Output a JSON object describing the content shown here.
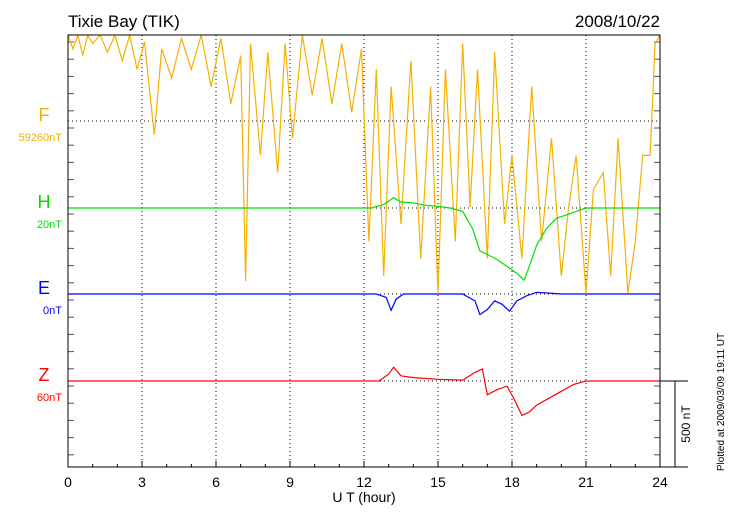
{
  "chart_data": {
    "type": "line",
    "title": "Tixie Bay (TIK)",
    "date": "2008/10/22",
    "xlabel": "U T (hour)",
    "xlim": [
      0,
      24
    ],
    "xticks": [
      "0",
      "3",
      "6",
      "9",
      "12",
      "15",
      "18",
      "21",
      "24"
    ],
    "scale_bar_label": "500 nT",
    "scale_bar_nT": 500,
    "plotted_note": "Plotted at 2009/03/09 19:11 UT",
    "colors": {
      "F": "#f5b000",
      "H": "#00e000",
      "E": "#0000ff",
      "Z": "#ff0000"
    },
    "series": [
      {
        "name": "F",
        "baseline_label": "59260nT",
        "values": [
          [
            0,
            500
          ],
          [
            0.2,
            420
          ],
          [
            0.4,
            500
          ],
          [
            0.6,
            380
          ],
          [
            0.8,
            500
          ],
          [
            1,
            450
          ],
          [
            1.3,
            500
          ],
          [
            1.6,
            400
          ],
          [
            1.9,
            500
          ],
          [
            2.2,
            350
          ],
          [
            2.5,
            500
          ],
          [
            2.8,
            300
          ],
          [
            3.1,
            460
          ],
          [
            3.5,
            -80
          ],
          [
            3.8,
            420
          ],
          [
            4.2,
            250
          ],
          [
            4.6,
            480
          ],
          [
            5,
            300
          ],
          [
            5.4,
            500
          ],
          [
            5.8,
            200
          ],
          [
            6.2,
            480
          ],
          [
            6.6,
            100
          ],
          [
            7,
            380
          ],
          [
            7.2,
            -930
          ],
          [
            7.4,
            450
          ],
          [
            7.8,
            -200
          ],
          [
            8.1,
            400
          ],
          [
            8.5,
            -300
          ],
          [
            8.8,
            450
          ],
          [
            9.1,
            -100
          ],
          [
            9.5,
            500
          ],
          [
            9.9,
            150
          ],
          [
            10.3,
            480
          ],
          [
            10.7,
            100
          ],
          [
            11.1,
            450
          ],
          [
            11.5,
            50
          ],
          [
            11.9,
            420
          ],
          [
            12.2,
            -700
          ],
          [
            12.5,
            300
          ],
          [
            12.8,
            -900
          ],
          [
            13.1,
            200
          ],
          [
            13.5,
            -600
          ],
          [
            13.9,
            350
          ],
          [
            14.3,
            -800
          ],
          [
            14.7,
            200
          ],
          [
            15,
            -1000
          ],
          [
            15.3,
            300
          ],
          [
            15.7,
            -700
          ],
          [
            16,
            450
          ],
          [
            16.3,
            -500
          ],
          [
            16.6,
            300
          ],
          [
            17,
            -800
          ],
          [
            17.3,
            400
          ],
          [
            17.7,
            -600
          ],
          [
            18,
            -200
          ],
          [
            18.4,
            -800
          ],
          [
            18.8,
            200
          ],
          [
            19.2,
            -700
          ],
          [
            19.6,
            -100
          ],
          [
            20,
            -900
          ],
          [
            20.3,
            -500
          ],
          [
            20.6,
            -200
          ],
          [
            21,
            -1000
          ],
          [
            21.3,
            -400
          ],
          [
            21.7,
            -300
          ],
          [
            22,
            -900
          ],
          [
            22.3,
            -100
          ],
          [
            22.7,
            -1000
          ],
          [
            23,
            -700
          ],
          [
            23.3,
            -200
          ],
          [
            23.6,
            -200
          ],
          [
            23.8,
            450
          ],
          [
            24,
            500
          ]
        ]
      },
      {
        "name": "H",
        "baseline_label": "20nT",
        "values": [
          [
            0,
            0
          ],
          [
            12.3,
            0
          ],
          [
            12.8,
            20
          ],
          [
            13.2,
            60
          ],
          [
            13.5,
            35
          ],
          [
            14,
            30
          ],
          [
            14.5,
            15
          ],
          [
            15,
            10
          ],
          [
            15.5,
            0
          ],
          [
            16,
            -20
          ],
          [
            16.4,
            -120
          ],
          [
            16.7,
            -250
          ],
          [
            17,
            -270
          ],
          [
            17.4,
            -300
          ],
          [
            17.8,
            -340
          ],
          [
            18.2,
            -380
          ],
          [
            18.5,
            -420
          ],
          [
            18.8,
            -300
          ],
          [
            19,
            -215
          ],
          [
            19.4,
            -120
          ],
          [
            19.8,
            -60
          ],
          [
            20.2,
            -40
          ],
          [
            20.6,
            -20
          ],
          [
            21,
            0
          ],
          [
            24,
            0
          ]
        ]
      },
      {
        "name": "E",
        "baseline_label": "0nT",
        "values": [
          [
            0,
            0
          ],
          [
            12.5,
            0
          ],
          [
            12.9,
            -20
          ],
          [
            13.1,
            -95
          ],
          [
            13.3,
            -30
          ],
          [
            13.6,
            0
          ],
          [
            16,
            0
          ],
          [
            16.5,
            -40
          ],
          [
            16.7,
            -120
          ],
          [
            17,
            -90
          ],
          [
            17.3,
            -40
          ],
          [
            17.6,
            -60
          ],
          [
            17.9,
            -100
          ],
          [
            18.2,
            -40
          ],
          [
            18.6,
            -10
          ],
          [
            19,
            10
          ],
          [
            19.5,
            5
          ],
          [
            20,
            0
          ],
          [
            24,
            0
          ]
        ]
      },
      {
        "name": "Z",
        "baseline_label": "60nT",
        "values": [
          [
            0,
            0
          ],
          [
            12.6,
            0
          ],
          [
            13,
            40
          ],
          [
            13.2,
            80
          ],
          [
            13.5,
            30
          ],
          [
            14,
            20
          ],
          [
            15,
            10
          ],
          [
            16,
            5
          ],
          [
            16.5,
            50
          ],
          [
            16.8,
            70
          ],
          [
            17,
            -80
          ],
          [
            17.4,
            -50
          ],
          [
            17.8,
            -30
          ],
          [
            18.1,
            -110
          ],
          [
            18.4,
            -200
          ],
          [
            18.7,
            -180
          ],
          [
            19,
            -140
          ],
          [
            19.5,
            -100
          ],
          [
            20,
            -60
          ],
          [
            20.5,
            -20
          ],
          [
            21,
            0
          ],
          [
            24,
            0
          ]
        ]
      }
    ]
  }
}
